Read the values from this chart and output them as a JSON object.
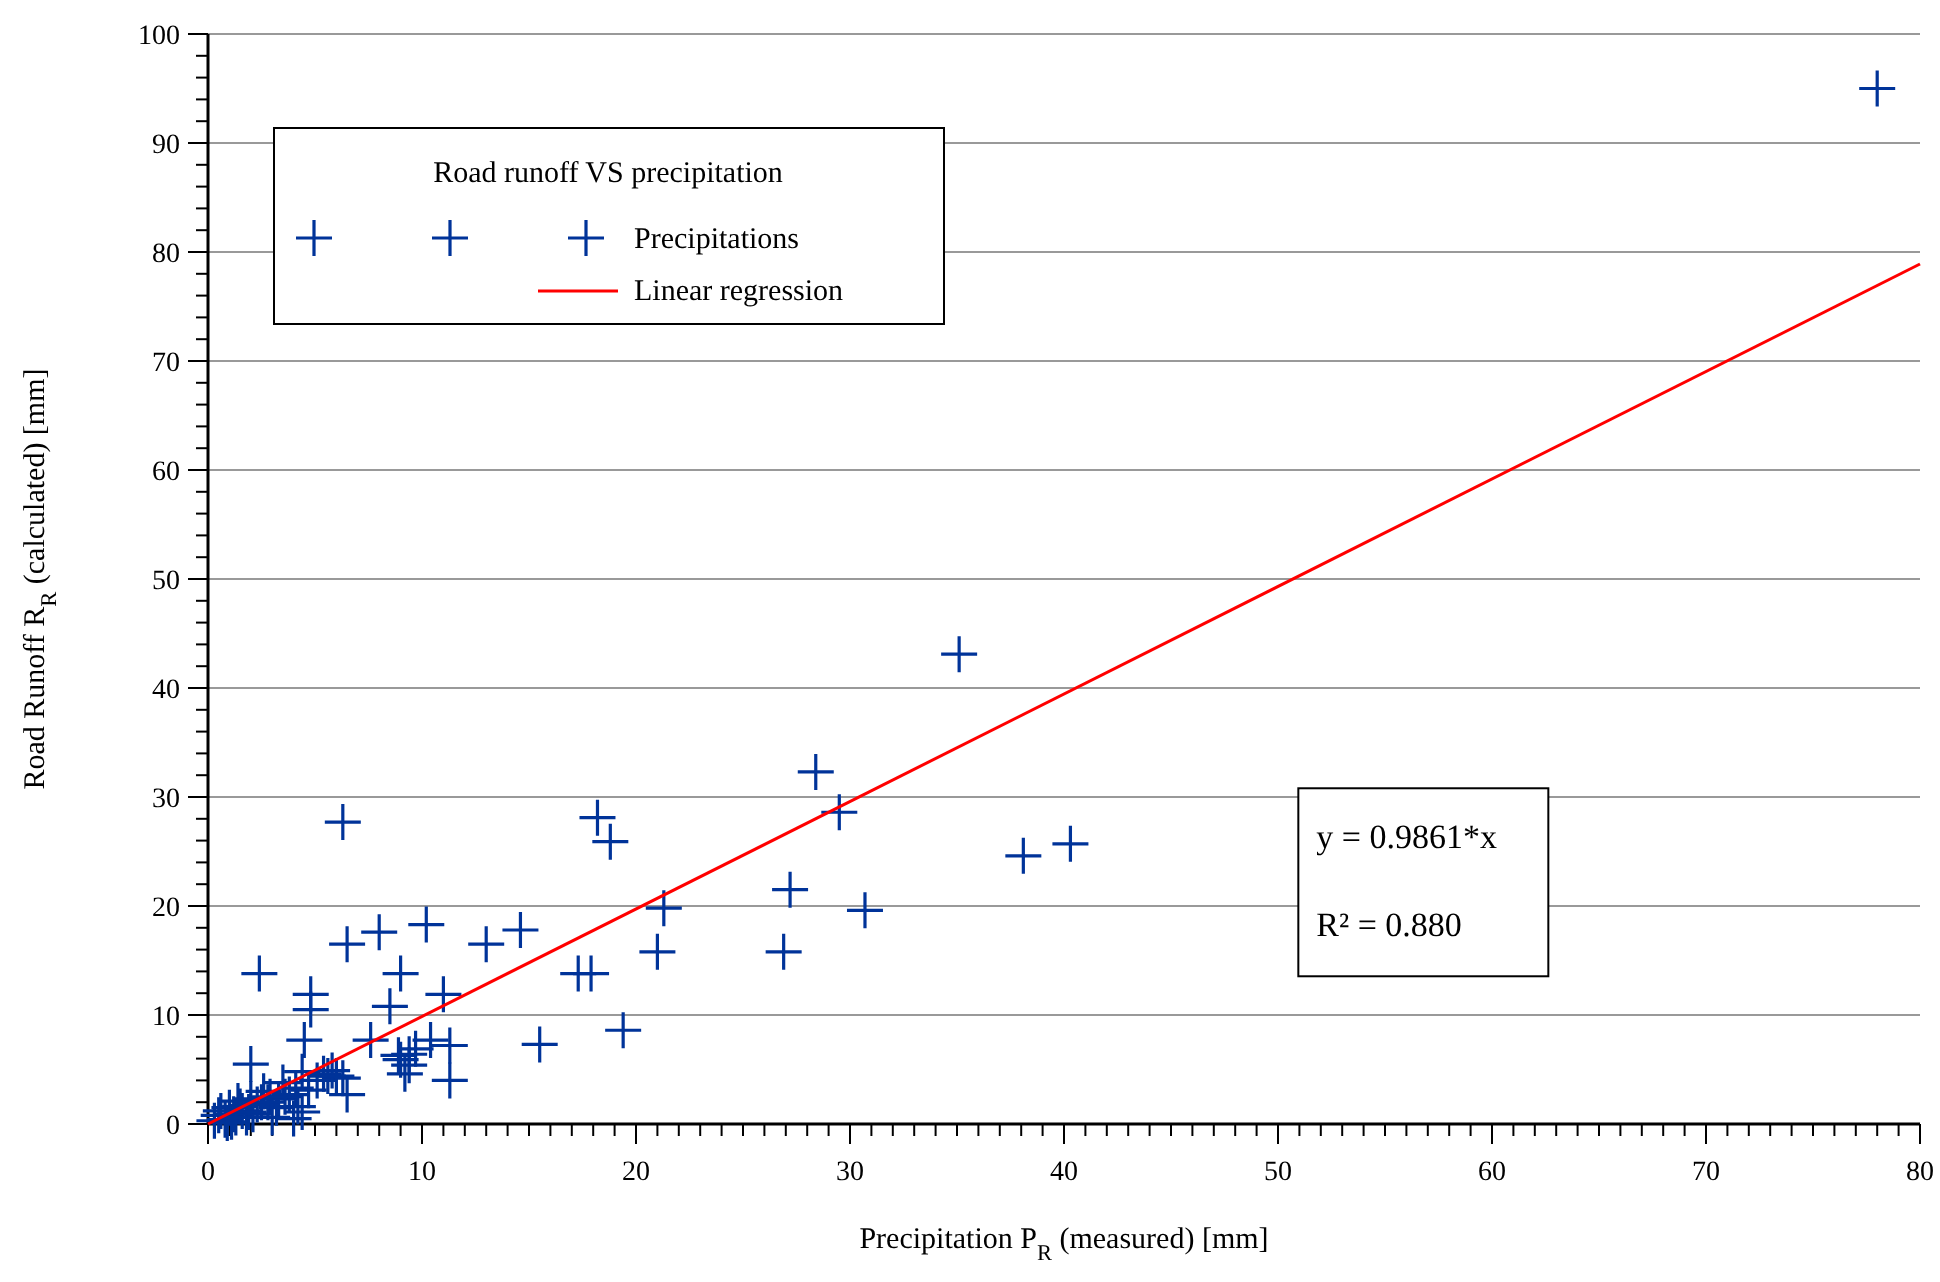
{
  "chart_data": {
    "type": "scatter",
    "legend_title": "Road runoff VS precipitation",
    "xlabel": "Precipitation P$_{R}$ (measured) [mm]",
    "ylabel": "Road Runoff R$_{R}$ (calculated) [mm]",
    "xlim": [
      0,
      80
    ],
    "ylim": [
      0,
      100
    ],
    "xticks": [
      0,
      {
        "value": 1,
        "label": null
      },
      {
        "value": 2,
        "label": null
      },
      {
        "value": 3,
        "label": null
      },
      {
        "value": 4,
        "label": null
      },
      {
        "value": 5,
        "label": null
      },
      {
        "value": 6,
        "label": null
      },
      {
        "value": 7,
        "label": null
      },
      {
        "value": 8,
        "label": null
      },
      {
        "value": 9,
        "label": null
      },
      10,
      {
        "value": 11,
        "label": null
      },
      {
        "value": 12,
        "label": null
      },
      {
        "value": 13,
        "label": null
      },
      {
        "value": 14,
        "label": null
      },
      {
        "value": 15,
        "label": null
      },
      {
        "value": 16,
        "label": null
      },
      {
        "value": 17,
        "label": null
      },
      {
        "value": 18,
        "label": null
      },
      {
        "value": 19,
        "label": null
      },
      20,
      {
        "value": 21,
        "label": null
      },
      {
        "value": 22,
        "label": null
      },
      {
        "value": 23,
        "label": null
      },
      {
        "value": 24,
        "label": null
      },
      {
        "value": 25,
        "label": null
      },
      {
        "value": 26,
        "label": null
      },
      {
        "value": 27,
        "label": null
      },
      {
        "value": 28,
        "label": null
      },
      {
        "value": 29,
        "label": null
      },
      30,
      {
        "value": 31,
        "label": null
      },
      {
        "value": 32,
        "label": null
      },
      {
        "value": 33,
        "label": null
      },
      {
        "value": 34,
        "label": null
      },
      {
        "value": 35,
        "label": null
      },
      {
        "value": 36,
        "label": null
      },
      {
        "value": 37,
        "label": null
      },
      {
        "value": 38,
        "label": null
      },
      {
        "value": 39,
        "label": null
      },
      40,
      {
        "value": 41,
        "label": null
      },
      {
        "value": 42,
        "label": null
      },
      {
        "value": 43,
        "label": null
      },
      {
        "value": 44,
        "label": null
      },
      {
        "value": 45,
        "label": null
      },
      {
        "value": 46,
        "label": null
      },
      {
        "value": 47,
        "label": null
      },
      {
        "value": 48,
        "label": null
      },
      {
        "value": 49,
        "label": null
      },
      50,
      {
        "value": 51,
        "label": null
      },
      {
        "value": 52,
        "label": null
      },
      {
        "value": 53,
        "label": null
      },
      {
        "value": 54,
        "label": null
      },
      {
        "value": 55,
        "label": null
      },
      {
        "value": 56,
        "label": null
      },
      {
        "value": 57,
        "label": null
      },
      {
        "value": 58,
        "label": null
      },
      {
        "value": 59,
        "label": null
      },
      60,
      {
        "value": 61,
        "label": null
      },
      {
        "value": 62,
        "label": null
      },
      {
        "value": 63,
        "label": null
      },
      {
        "value": 64,
        "label": null
      },
      {
        "value": 65,
        "label": null
      },
      {
        "value": 66,
        "label": null
      },
      {
        "value": 67,
        "label": null
      },
      {
        "value": 68,
        "label": null
      },
      {
        "value": 69,
        "label": null
      },
      70,
      {
        "value": 71,
        "label": null
      },
      {
        "value": 72,
        "label": null
      },
      {
        "value": 73,
        "label": null
      },
      {
        "value": 74,
        "label": null
      },
      {
        "value": 75,
        "label": null
      },
      {
        "value": 76,
        "label": null
      },
      {
        "value": 77,
        "label": null
      },
      {
        "value": 78,
        "label": null
      },
      {
        "value": 79,
        "label": null
      },
      80
    ],
    "yticks": [
      0,
      {
        "value": 2,
        "label": null
      },
      {
        "value": 4,
        "label": null
      },
      {
        "value": 6,
        "label": null
      },
      {
        "value": 8,
        "label": null
      },
      10,
      {
        "value": 12,
        "label": null
      },
      {
        "value": 14,
        "label": null
      },
      {
        "value": 16,
        "label": null
      },
      {
        "value": 18,
        "label": null
      },
      20,
      {
        "value": 22,
        "label": null
      },
      {
        "value": 24,
        "label": null
      },
      {
        "value": 26,
        "label": null
      },
      {
        "value": 28,
        "label": null
      },
      30,
      {
        "value": 32,
        "label": null
      },
      {
        "value": 34,
        "label": null
      },
      {
        "value": 36,
        "label": null
      },
      {
        "value": 38,
        "label": null
      },
      40,
      {
        "value": 42,
        "label": null
      },
      {
        "value": 44,
        "label": null
      },
      {
        "value": 46,
        "label": null
      },
      {
        "value": 48,
        "label": null
      },
      50,
      {
        "value": 52,
        "label": null
      },
      {
        "value": 54,
        "label": null
      },
      {
        "value": 56,
        "label": null
      },
      {
        "value": 58,
        "label": null
      },
      60,
      {
        "value": 62,
        "label": null
      },
      {
        "value": 64,
        "label": null
      },
      {
        "value": 66,
        "label": null
      },
      {
        "value": 68,
        "label": null
      },
      70,
      {
        "value": 72,
        "label": null
      },
      {
        "value": 74,
        "label": null
      },
      {
        "value": 76,
        "label": null
      },
      {
        "value": 78,
        "label": null
      },
      80,
      {
        "value": 82,
        "label": null
      },
      {
        "value": 84,
        "label": null
      },
      {
        "value": 86,
        "label": null
      },
      {
        "value": 88,
        "label": null
      },
      90,
      {
        "value": 92,
        "label": null
      },
      {
        "value": 94,
        "label": null
      },
      {
        "value": 96,
        "label": null
      },
      {
        "value": 98,
        "label": null
      },
      100
    ],
    "grid": "y",
    "legend": "top left",
    "marker": "cross",
    "annotations": [
      "y = 0.9861*x",
      "R² = 0.880"
    ],
    "series": [
      {
        "name": "Precipitations",
        "type": "scatter",
        "color": "#003399",
        "x": [
          78,
          35.1,
          28.4,
          29.5,
          40.3,
          38.1,
          6.3,
          18.2,
          18.8,
          27.2,
          26.9,
          30.7,
          21.3,
          21,
          19.4,
          15.5,
          14.6,
          13,
          17.3,
          17.9,
          10.2,
          8,
          6.5,
          2.4,
          9,
          4.8,
          4.8,
          4.5,
          8.5,
          11,
          7.6,
          10.4,
          9.4,
          9.2,
          11.3,
          2,
          6.5,
          9,
          9.4,
          9.7,
          8.9,
          11.3,
          3.3,
          5.6,
          4.4,
          6.3,
          0.3,
          0.5,
          0.8,
          1,
          1.2,
          1.4,
          1.6,
          1.8,
          2,
          2.3,
          2.6,
          2.9,
          3.2,
          3.5,
          3.8,
          4.1,
          4.4,
          4.7,
          5.1,
          5.4,
          0.6,
          1.1,
          1.5,
          2.1,
          2.5,
          3,
          3.6,
          4.2,
          0.9,
          1.3,
          1.9,
          2.8,
          5.8,
          6,
          4
        ],
        "values": [
          95,
          43.1,
          32.3,
          28.6,
          25.7,
          24.6,
          27.7,
          28.1,
          25.9,
          21.5,
          15.8,
          19.6,
          19.8,
          15.8,
          8.6,
          7.3,
          17.8,
          16.5,
          13.8,
          13.8,
          18.3,
          17.6,
          16.5,
          13.8,
          13.8,
          11.9,
          10.5,
          7.7,
          10.8,
          11.9,
          7.7,
          7.7,
          6.4,
          4.6,
          4,
          5.5,
          2.7,
          5.9,
          5.4,
          6.9,
          6.3,
          7.2,
          2.3,
          4.4,
          1.1,
          4.2,
          0.3,
          0.8,
          0.4,
          1.5,
          0.9,
          2.1,
          1.2,
          0.6,
          2.3,
          1.8,
          3,
          2.5,
          1.5,
          3.8,
          2.7,
          3.3,
          4.8,
          3.1,
          4,
          4.6,
          1.2,
          0.2,
          1.6,
          0.9,
          2,
          0.6,
          2.5,
          1.6,
          0.1,
          0.6,
          1.1,
          2,
          4.9,
          4.4,
          0.5
        ]
      },
      {
        "name": "Linear regression",
        "type": "line",
        "color": "#ff0000",
        "marker": "none",
        "x": [
          0,
          80
        ],
        "values": [
          0,
          78.9
        ]
      }
    ]
  }
}
